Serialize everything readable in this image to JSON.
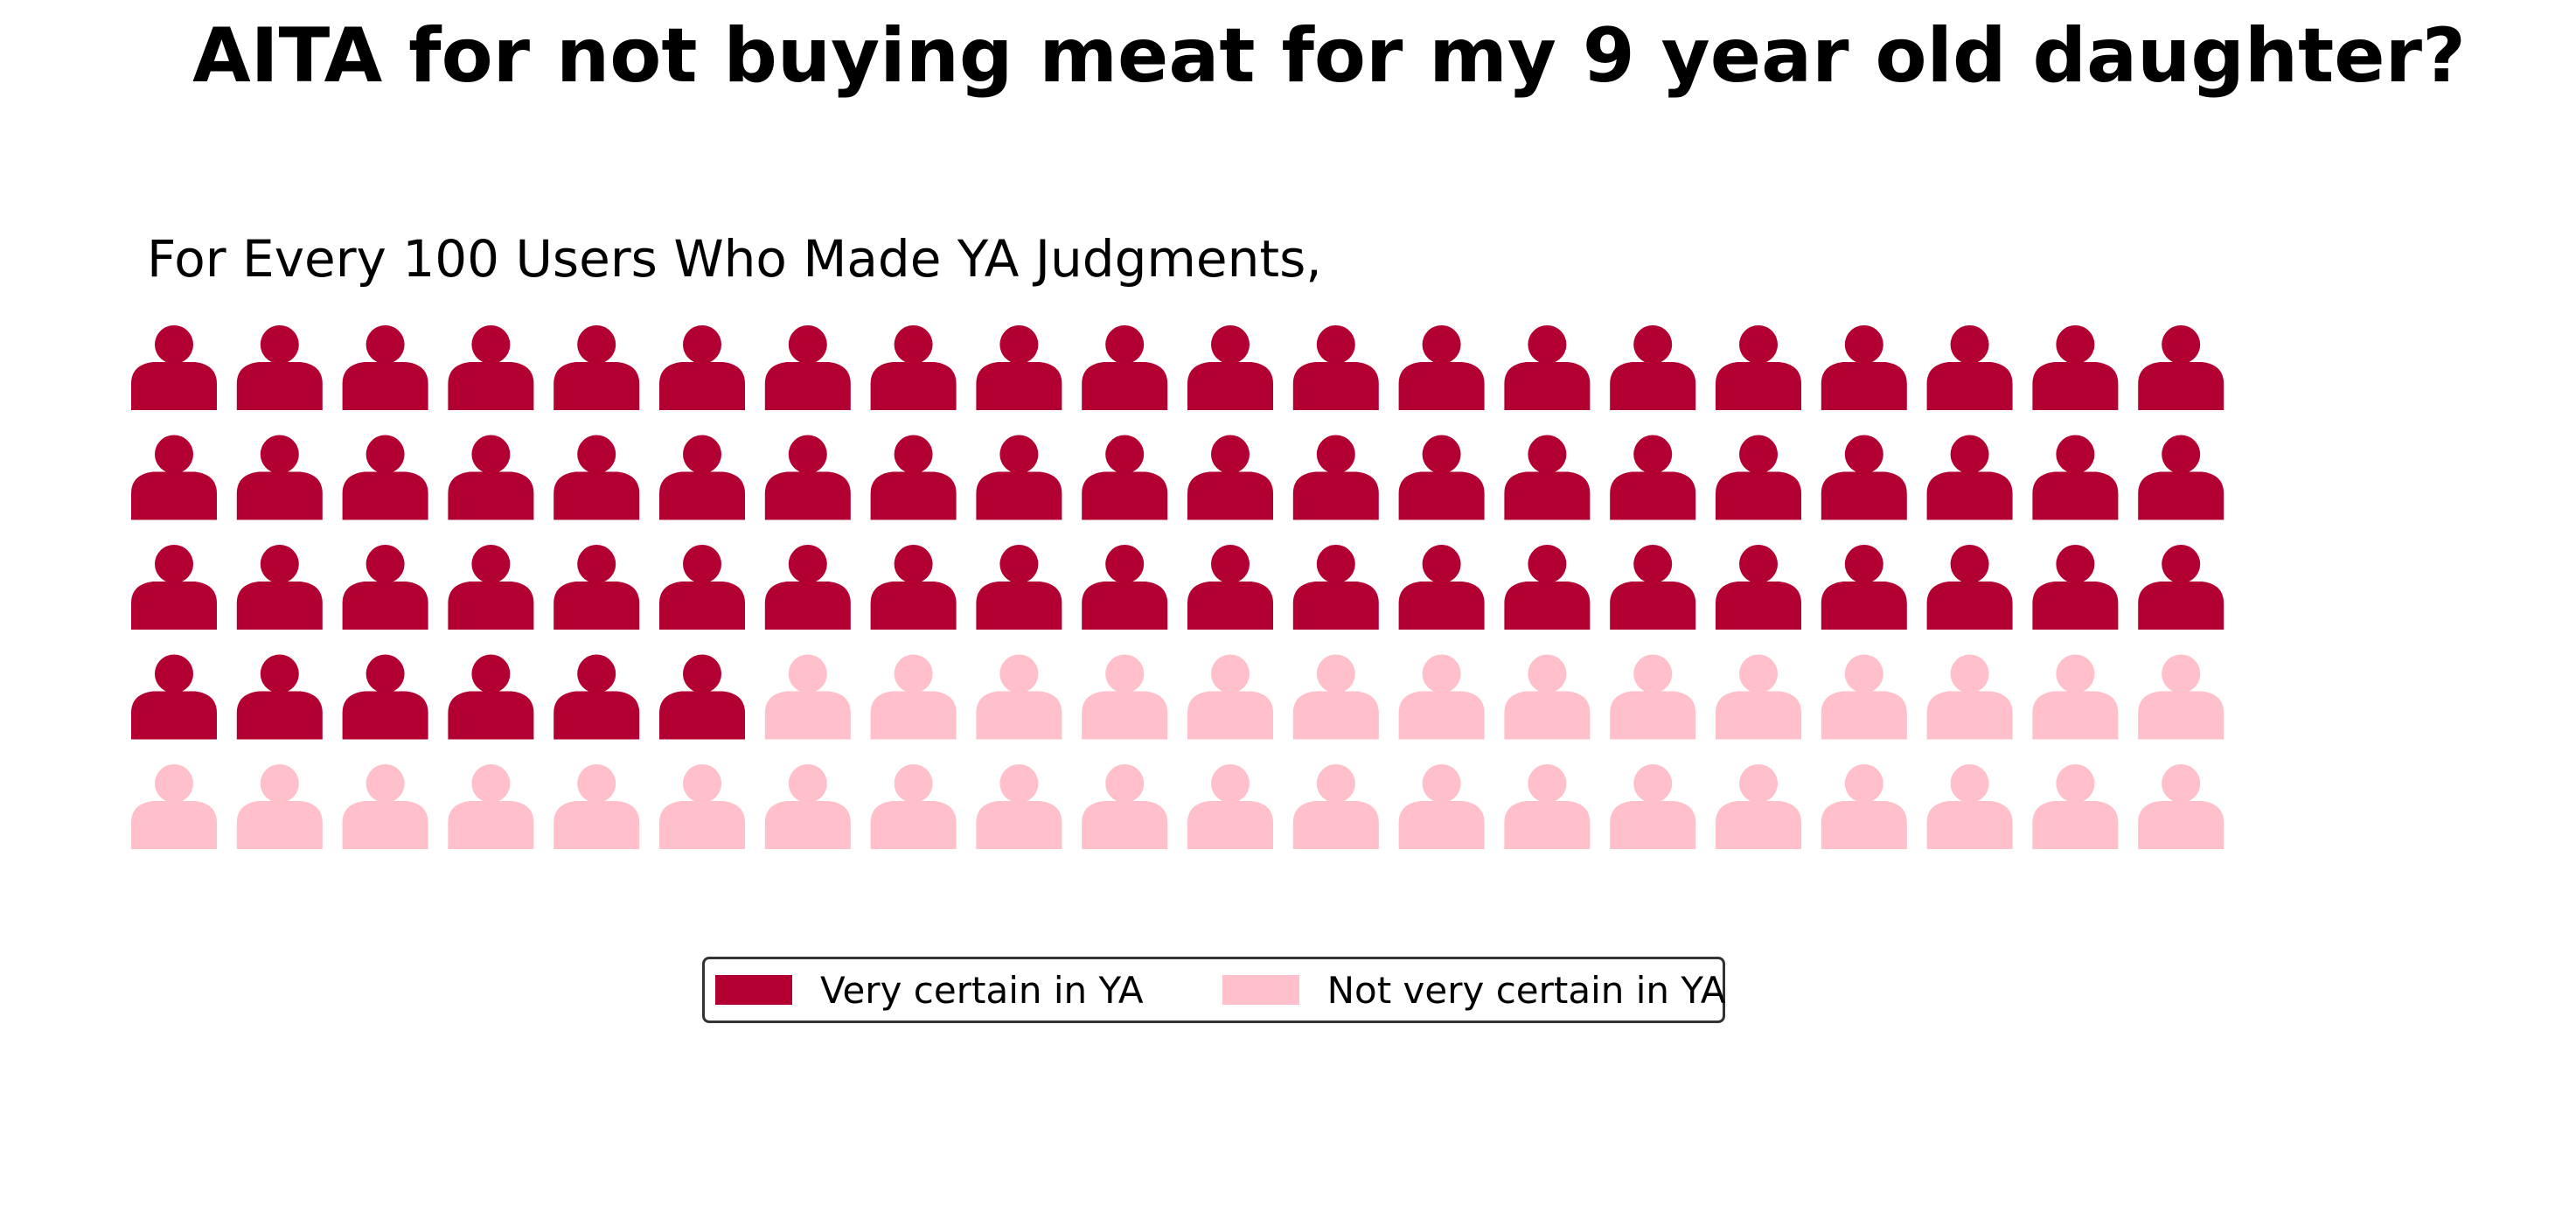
{
  "chart_data": {
    "type": "waffle",
    "title": "AITA for not buying meat for my 9 year old daughter?",
    "subtitle": "For Every 100 Users Who Made YA Judgments,",
    "rows": 5,
    "columns": 20,
    "total": 100,
    "icon": "person-icon",
    "series": [
      {
        "name": "Very certain in YA",
        "value": 66,
        "color": "#b30033"
      },
      {
        "name": "Not very certain in YA",
        "value": 34,
        "color": "#ffc0cb"
      }
    ],
    "legend_position": "bottom-center"
  }
}
